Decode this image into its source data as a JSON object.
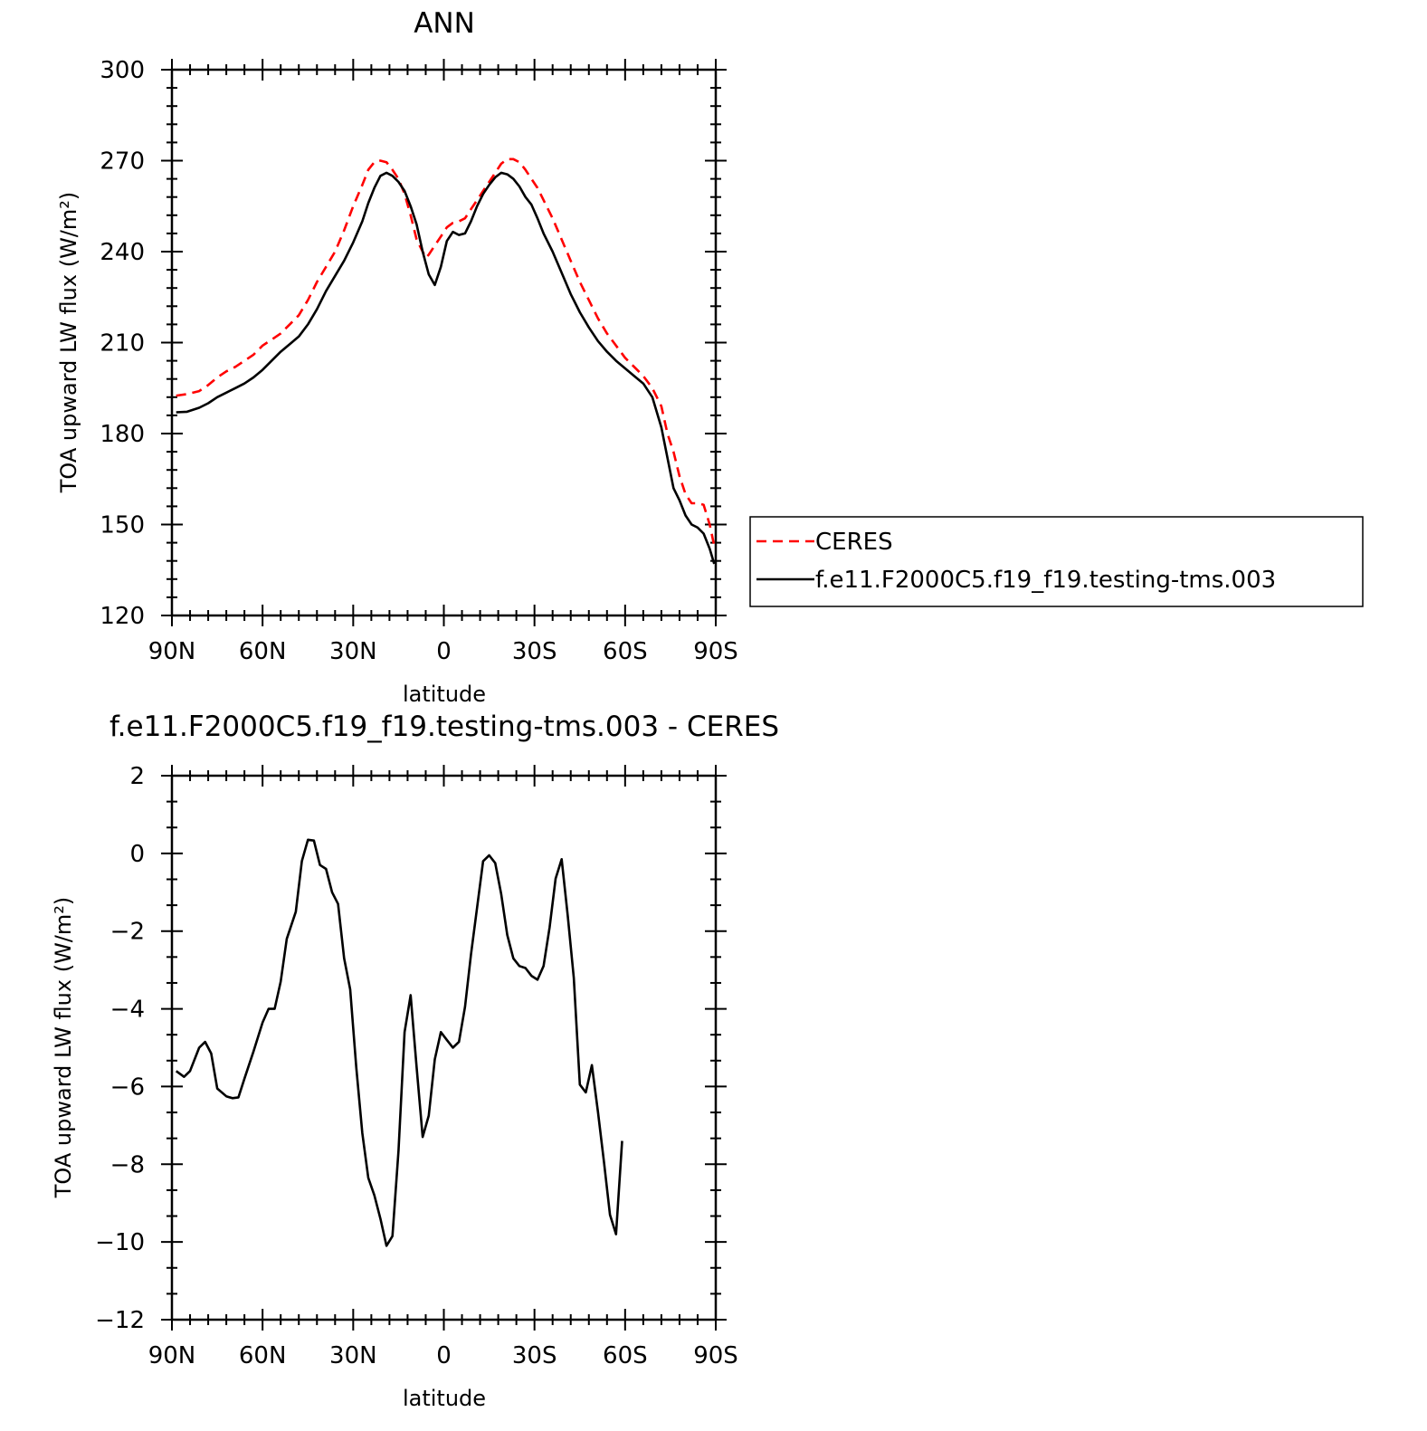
{
  "chart_data": [
    {
      "type": "line",
      "title": "ANN",
      "xlabel": "latitude",
      "ylabel": "TOA upward LW flux (W/m²)",
      "xlim": [
        90,
        -90
      ],
      "ylim": [
        120,
        300
      ],
      "x_tick_values": [
        90,
        60,
        30,
        0,
        -30,
        -60,
        -90
      ],
      "x_tick_labels": [
        "90N",
        "60N",
        "30N",
        "0",
        "30S",
        "60S",
        "90S"
      ],
      "y_tick_values": [
        120,
        150,
        180,
        210,
        240,
        270,
        300
      ],
      "y_tick_labels": [
        "120",
        "150",
        "180",
        "210",
        "240",
        "270",
        "300"
      ],
      "legend": "right",
      "series": [
        {
          "name": "CERES",
          "color": "#ff0000",
          "dash": "dashed",
          "points": [
            [
              88.6,
              192.5
            ],
            [
              85,
              193
            ],
            [
              81,
              194
            ],
            [
              78,
              196
            ],
            [
              75,
              198.5
            ],
            [
              72,
              200.5
            ],
            [
              69,
              202
            ],
            [
              66,
              204
            ],
            [
              63,
              206
            ],
            [
              60,
              209
            ],
            [
              57,
              211
            ],
            [
              54,
              213
            ],
            [
              51,
              216
            ],
            [
              48,
              219
            ],
            [
              45,
              224
            ],
            [
              42,
              230
            ],
            [
              39,
              235
            ],
            [
              36,
              240
            ],
            [
              33,
              247
            ],
            [
              30,
              255
            ],
            [
              27,
              262
            ],
            [
              25,
              267
            ],
            [
              23,
              269.5
            ],
            [
              21,
              270
            ],
            [
              19,
              269.5
            ],
            [
              17,
              267
            ],
            [
              15,
              264
            ],
            [
              13,
              259
            ],
            [
              11,
              252
            ],
            [
              9,
              244
            ],
            [
              7,
              240
            ],
            [
              6,
              238
            ],
            [
              5,
              239
            ],
            [
              3,
              242
            ],
            [
              1,
              245
            ],
            [
              -1,
              248
            ],
            [
              -3,
              249.5
            ],
            [
              -5,
              250
            ],
            [
              -7,
              251
            ],
            [
              -9,
              254
            ],
            [
              -11,
              257
            ],
            [
              -13,
              260
            ],
            [
              -15,
              263
            ],
            [
              -17,
              266
            ],
            [
              -19,
              269
            ],
            [
              -21,
              270.5
            ],
            [
              -23,
              270.5
            ],
            [
              -25,
              269.5
            ],
            [
              -27,
              267
            ],
            [
              -29,
              264
            ],
            [
              -31,
              261
            ],
            [
              -33,
              257
            ],
            [
              -36,
              251
            ],
            [
              -39,
              244
            ],
            [
              -42,
              237
            ],
            [
              -45,
              230
            ],
            [
              -48,
              224
            ],
            [
              -51,
              218
            ],
            [
              -54,
              213
            ],
            [
              -57,
              209
            ],
            [
              -60,
              205
            ],
            [
              -63,
              202
            ],
            [
              -66,
              199
            ],
            [
              -69,
              195
            ],
            [
              -72,
              189
            ],
            [
              -74,
              180
            ],
            [
              -76,
              174
            ],
            [
              -78,
              166
            ],
            [
              -80,
              160
            ],
            [
              -82,
              157
            ],
            [
              -84,
              157
            ],
            [
              -86,
              156.5
            ],
            [
              -88,
              150
            ],
            [
              -89.5,
              143
            ]
          ]
        },
        {
          "name": "f.e11.F2000C5.f19_f19.testing-tms.003",
          "color": "#000000",
          "dash": "solid",
          "points": [
            [
              88.6,
              187
            ],
            [
              85,
              187.2
            ],
            [
              81,
              188.5
            ],
            [
              78,
              190
            ],
            [
              75,
              192
            ],
            [
              72,
              193.5
            ],
            [
              69,
              195
            ],
            [
              66,
              196.5
            ],
            [
              63,
              198.5
            ],
            [
              60,
              201
            ],
            [
              57,
              204
            ],
            [
              54,
              207
            ],
            [
              51,
              209.5
            ],
            [
              48,
              212
            ],
            [
              45,
              216
            ],
            [
              42,
              221
            ],
            [
              39,
              227
            ],
            [
              36,
              232
            ],
            [
              33,
              237
            ],
            [
              30,
              243
            ],
            [
              27,
              250
            ],
            [
              25,
              256
            ],
            [
              23,
              261
            ],
            [
              21,
              265
            ],
            [
              19,
              266
            ],
            [
              17,
              265
            ],
            [
              15,
              263
            ],
            [
              13,
              260
            ],
            [
              11,
              255
            ],
            [
              9,
              249
            ],
            [
              7,
              240
            ],
            [
              5,
              232.5
            ],
            [
              3,
              229
            ],
            [
              1,
              235
            ],
            [
              -1,
              243.5
            ],
            [
              -3,
              246.5
            ],
            [
              -5,
              245.5
            ],
            [
              -7,
              246
            ],
            [
              -9,
              250
            ],
            [
              -11,
              255
            ],
            [
              -13,
              259
            ],
            [
              -15,
              262
            ],
            [
              -17,
              264.5
            ],
            [
              -19,
              266
            ],
            [
              -21,
              265.5
            ],
            [
              -23,
              264
            ],
            [
              -25,
              261.5
            ],
            [
              -27,
              258
            ],
            [
              -29,
              255.5
            ],
            [
              -31,
              251
            ],
            [
              -33,
              246
            ],
            [
              -36,
              240
            ],
            [
              -39,
              233
            ],
            [
              -42,
              226
            ],
            [
              -45,
              220
            ],
            [
              -48,
              215
            ],
            [
              -51,
              210.5
            ],
            [
              -54,
              207
            ],
            [
              -57,
              204
            ],
            [
              -60,
              201.5
            ],
            [
              -63,
              199
            ],
            [
              -66,
              196.5
            ],
            [
              -69,
              192
            ],
            [
              -72,
              182
            ],
            [
              -74,
              172
            ],
            [
              -76,
              162
            ],
            [
              -78,
              158
            ],
            [
              -80,
              153
            ],
            [
              -82,
              150
            ],
            [
              -84,
              149
            ],
            [
              -86,
              147
            ],
            [
              -88,
              142
            ],
            [
              -89.5,
              137
            ]
          ]
        }
      ]
    },
    {
      "type": "line",
      "title": "f.e11.F2000C5.f19_f19.testing-tms.003 - CERES",
      "xlabel": "latitude",
      "ylabel": "TOA upward LW flux (W/m²)",
      "xlim": [
        90,
        -90
      ],
      "ylim": [
        -12,
        2
      ],
      "x_tick_values": [
        90,
        60,
        30,
        0,
        -30,
        -60,
        -90
      ],
      "x_tick_labels": [
        "90N",
        "60N",
        "30N",
        "0",
        "30S",
        "60S",
        "90S"
      ],
      "y_tick_values": [
        -12,
        -10,
        -8,
        -6,
        -4,
        -2,
        0,
        2
      ],
      "y_tick_labels": [
        "−12",
        "−10",
        "−8",
        "−6",
        "−4",
        "−2",
        "0",
        "2"
      ],
      "series": [
        {
          "color": "#000000",
          "dash": "solid",
          "points": [
            [
              88.6,
              -5.6
            ],
            [
              86,
              -5.75
            ],
            [
              84,
              -5.6
            ],
            [
              81,
              -5.0
            ],
            [
              79,
              -4.85
            ],
            [
              77,
              -5.15
            ],
            [
              75,
              -6.05
            ],
            [
              72,
              -6.25
            ],
            [
              70,
              -6.3
            ],
            [
              68,
              -6.28
            ],
            [
              66,
              -5.8
            ],
            [
              63,
              -5.1
            ],
            [
              60,
              -4.35
            ],
            [
              58,
              -4.0
            ],
            [
              56,
              -4.0
            ],
            [
              54,
              -3.3
            ],
            [
              52,
              -2.2
            ],
            [
              49,
              -1.5
            ],
            [
              47,
              -0.2
            ],
            [
              45,
              0.35
            ],
            [
              43,
              0.33
            ],
            [
              41,
              -0.3
            ],
            [
              39,
              -0.4
            ],
            [
              37,
              -1.0
            ],
            [
              35,
              -1.3
            ],
            [
              33,
              -2.7
            ],
            [
              31,
              -3.5
            ],
            [
              29,
              -5.5
            ],
            [
              27,
              -7.2
            ],
            [
              25,
              -8.35
            ],
            [
              23,
              -8.8
            ],
            [
              21,
              -9.4
            ],
            [
              19,
              -10.1
            ],
            [
              17,
              -9.85
            ],
            [
              15,
              -7.65
            ],
            [
              13,
              -4.6
            ],
            [
              11,
              -3.65
            ],
            [
              9,
              -5.5
            ],
            [
              7,
              -7.3
            ],
            [
              5,
              -6.75
            ],
            [
              3,
              -5.3
            ],
            [
              1,
              -4.6
            ],
            [
              -1,
              -4.8
            ],
            [
              -3,
              -5.0
            ],
            [
              -5,
              -4.85
            ],
            [
              -7,
              -3.95
            ],
            [
              -9,
              -2.6
            ],
            [
              -11,
              -1.4
            ],
            [
              -13,
              -0.2
            ],
            [
              -15,
              -0.05
            ],
            [
              -17,
              -0.25
            ],
            [
              -19,
              -1.05
            ],
            [
              -21,
              -2.1
            ],
            [
              -23,
              -2.7
            ],
            [
              -25,
              -2.9
            ],
            [
              -27,
              -2.95
            ],
            [
              -29,
              -3.15
            ],
            [
              -31,
              -3.25
            ],
            [
              -33,
              -2.9
            ],
            [
              -35,
              -1.9
            ],
            [
              -37,
              -0.65
            ],
            [
              -39,
              -0.15
            ],
            [
              -41,
              -1.6
            ],
            [
              -43,
              -3.2
            ],
            [
              -45,
              -5.95
            ],
            [
              -47,
              -6.15
            ],
            [
              -49,
              -5.45
            ],
            [
              -51,
              -6.65
            ],
            [
              -53,
              -7.95
            ],
            [
              -55,
              -9.3
            ],
            [
              -57,
              -9.8
            ],
            [
              -59,
              -7.4
            ]
          ]
        }
      ]
    }
  ]
}
